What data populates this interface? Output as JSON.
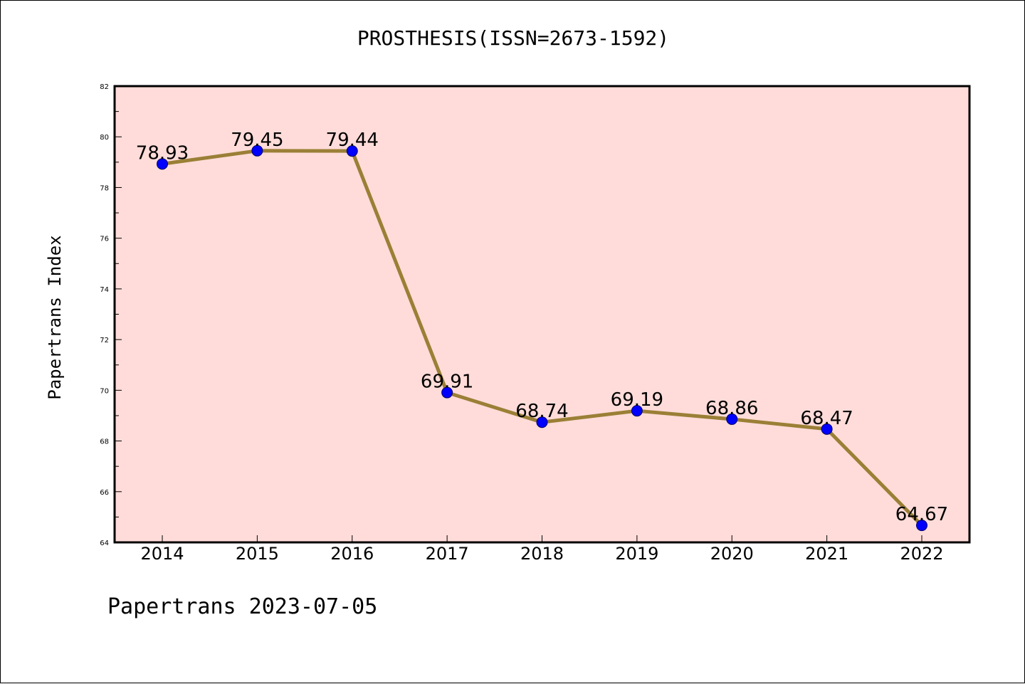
{
  "chart_data": {
    "type": "line",
    "title": "PROSTHESIS(ISSN=2673-1592)",
    "xlabel": "",
    "ylabel": "Papertrans Index",
    "x": [
      "2014",
      "2015",
      "2016",
      "2017",
      "2018",
      "2019",
      "2020",
      "2021",
      "2022"
    ],
    "series": [
      {
        "values": [
          78.93,
          79.45,
          79.44,
          69.91,
          68.74,
          69.19,
          68.86,
          68.47,
          64.67
        ]
      }
    ],
    "data_labels": [
      "78.93",
      "79.45",
      "79.44",
      "69.91",
      "68.74",
      "69.19",
      "68.86",
      "68.47",
      "64.67"
    ],
    "ylim": [
      64,
      82
    ],
    "yticks": [
      "64",
      "66",
      "68",
      "70",
      "72",
      "74",
      "76",
      "78",
      "80",
      "82"
    ],
    "grid": false,
    "legend": "none",
    "colors": {
      "plot_background": "#ffdcd9",
      "line": "#9a7f36",
      "marker": "#0000ff",
      "marker_edge": "#000066"
    }
  },
  "footer": {
    "text": "Papertrans 2023-07-05"
  }
}
